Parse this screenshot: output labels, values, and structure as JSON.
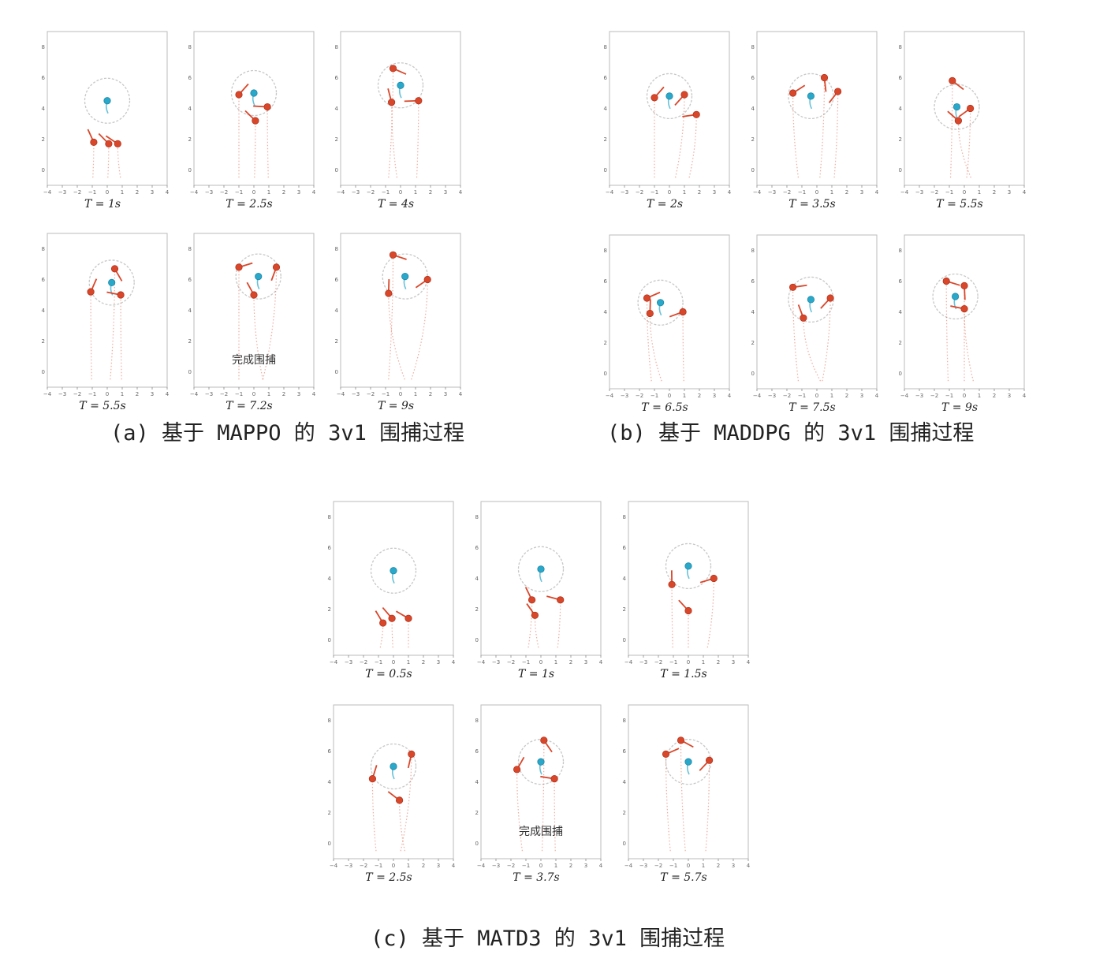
{
  "captions": {
    "a": "(a) 基于 MAPPO 的 3v1 围捕过程",
    "b": "(b) 基于 MADDPG 的 3v1 围捕过程",
    "c": "(c) 基于 MATD3 的 3v1 围捕过程"
  },
  "colors": {
    "pursuer": "#d9472b",
    "evader": "#2aa8c9",
    "circle": "#c7c7c7",
    "frame": "#bbbbbb"
  },
  "chart_data": [
    {
      "type": "scatter",
      "group": "a",
      "x_ticks": [
        -4,
        -3,
        -2,
        -1,
        0,
        1,
        2,
        3,
        4
      ],
      "y_ticks": [
        0,
        2,
        4,
        6,
        8
      ],
      "xlim": [
        -4,
        4
      ],
      "ylim": [
        -1,
        9
      ],
      "panels": [
        {
          "time_label": "T = 1s",
          "evader": [
            0,
            4.5
          ],
          "pursuers": [
            [
              -0.9,
              1.8
            ],
            [
              0.1,
              1.7
            ],
            [
              0.7,
              1.7
            ]
          ],
          "radius": 1.5,
          "note": ""
        },
        {
          "time_label": "T = 2.5s",
          "evader": [
            0,
            5
          ],
          "pursuers": [
            [
              -1,
              4.9
            ],
            [
              0.1,
              3.2
            ],
            [
              0.9,
              4.1
            ]
          ],
          "radius": 1.5,
          "note": ""
        },
        {
          "time_label": "T = 4s",
          "evader": [
            0,
            5.5
          ],
          "pursuers": [
            [
              -0.5,
              6.6
            ],
            [
              -0.6,
              4.4
            ],
            [
              1.2,
              4.5
            ]
          ],
          "radius": 1.5,
          "note": ""
        },
        {
          "time_label": "T = 5.5s",
          "evader": [
            0.3,
            5.8
          ],
          "pursuers": [
            [
              -1.1,
              5.2
            ],
            [
              0.5,
              6.7
            ],
            [
              0.9,
              5
            ]
          ],
          "radius": 1.5,
          "note": ""
        },
        {
          "time_label": "T = 7.2s",
          "evader": [
            0.3,
            6.2
          ],
          "pursuers": [
            [
              -1,
              6.8
            ],
            [
              1.5,
              6.8
            ],
            [
              0,
              5
            ]
          ],
          "radius": 1.5,
          "note": "完成围捕"
        },
        {
          "time_label": "T = 9s",
          "evader": [
            0.3,
            6.2
          ],
          "pursuers": [
            [
              -0.5,
              7.6
            ],
            [
              1.8,
              6
            ],
            [
              -0.8,
              5.1
            ]
          ],
          "radius": 1.5,
          "note": ""
        }
      ]
    },
    {
      "type": "scatter",
      "group": "b",
      "x_ticks": [
        -4,
        -3,
        -2,
        -1,
        0,
        1,
        2,
        3,
        4
      ],
      "y_ticks": [
        0,
        2,
        4,
        6,
        8
      ],
      "xlim": [
        -4,
        4
      ],
      "ylim": [
        -1,
        9
      ],
      "panels": [
        {
          "time_label": "T = 2s",
          "evader": [
            0,
            4.8
          ],
          "pursuers": [
            [
              -1,
              4.7
            ],
            [
              1,
              4.9
            ],
            [
              1.8,
              3.6
            ]
          ],
          "radius": 1.5,
          "note": ""
        },
        {
          "time_label": "T = 3.5s",
          "evader": [
            -0.4,
            4.8
          ],
          "pursuers": [
            [
              -1.6,
              5
            ],
            [
              0.5,
              6
            ],
            [
              1.4,
              5.1
            ]
          ],
          "radius": 1.5,
          "note": ""
        },
        {
          "time_label": "T = 5.5s",
          "evader": [
            -0.5,
            4.1
          ],
          "pursuers": [
            [
              -0.8,
              5.8
            ],
            [
              0.4,
              4
            ],
            [
              -0.4,
              3.2
            ]
          ],
          "radius": 1.5,
          "note": ""
        },
        {
          "time_label": "T = 6.5s",
          "evader": [
            -0.6,
            4.6
          ],
          "pursuers": [
            [
              -1.5,
              4.9
            ],
            [
              -1.3,
              3.9
            ],
            [
              0.9,
              4
            ]
          ],
          "radius": 1.5,
          "note": ""
        },
        {
          "time_label": "T = 7.5s",
          "evader": [
            -0.4,
            4.8
          ],
          "pursuers": [
            [
              -1.6,
              5.6
            ],
            [
              0.9,
              4.9
            ],
            [
              -0.9,
              3.6
            ]
          ],
          "radius": 1.5,
          "note": ""
        },
        {
          "time_label": "T = 9s",
          "evader": [
            -0.6,
            5
          ],
          "pursuers": [
            [
              -1.2,
              6
            ],
            [
              0,
              5.7
            ],
            [
              0,
              4.2
            ]
          ],
          "radius": 1.5,
          "note": ""
        }
      ]
    },
    {
      "type": "scatter",
      "group": "c",
      "x_ticks": [
        -4,
        -3,
        -2,
        -1,
        0,
        1,
        2,
        3,
        4
      ],
      "y_ticks": [
        0,
        2,
        4,
        6,
        8
      ],
      "xlim": [
        -4,
        4
      ],
      "ylim": [
        -1,
        9
      ],
      "panels": [
        {
          "time_label": "T = 0.5s",
          "evader": [
            0,
            4.5
          ],
          "pursuers": [
            [
              -0.7,
              1.1
            ],
            [
              -0.1,
              1.4
            ],
            [
              1,
              1.4
            ]
          ],
          "radius": 1.5,
          "note": ""
        },
        {
          "time_label": "T = 1s",
          "evader": [
            0,
            4.6
          ],
          "pursuers": [
            [
              -0.6,
              2.6
            ],
            [
              -0.4,
              1.6
            ],
            [
              1.3,
              2.6
            ]
          ],
          "radius": 1.5,
          "note": ""
        },
        {
          "time_label": "T = 1.5s",
          "evader": [
            0,
            4.8
          ],
          "pursuers": [
            [
              -1.1,
              3.6
            ],
            [
              0,
              1.9
            ],
            [
              1.7,
              4
            ]
          ],
          "radius": 1.5,
          "note": ""
        },
        {
          "time_label": "T = 2.5s",
          "evader": [
            0,
            5
          ],
          "pursuers": [
            [
              -1.4,
              4.2
            ],
            [
              1.2,
              5.8
            ],
            [
              0.4,
              2.8
            ]
          ],
          "radius": 1.5,
          "note": ""
        },
        {
          "time_label": "T = 3.7s",
          "evader": [
            0,
            5.3
          ],
          "pursuers": [
            [
              -1.6,
              4.8
            ],
            [
              0.2,
              6.7
            ],
            [
              0.9,
              4.2
            ]
          ],
          "radius": 1.5,
          "note": "完成围捕"
        },
        {
          "time_label": "T = 5.7s",
          "evader": [
            0,
            5.3
          ],
          "pursuers": [
            [
              -1.5,
              5.8
            ],
            [
              -0.5,
              6.7
            ],
            [
              1.4,
              5.4
            ]
          ],
          "radius": 1.5,
          "note": ""
        }
      ]
    }
  ]
}
